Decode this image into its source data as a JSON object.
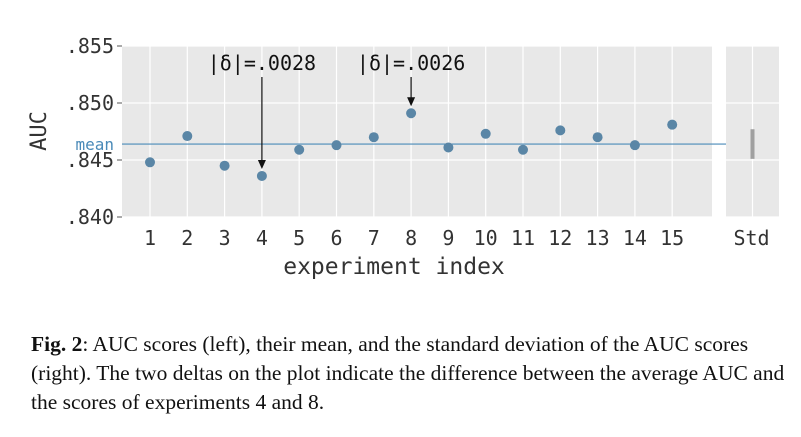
{
  "chart_data": {
    "type": "scatter",
    "ylabel": "AUC",
    "xlabel": "experiment index",
    "ylim": [
      0.84,
      0.855
    ],
    "yticks": [
      0.84,
      0.845,
      0.85,
      0.855
    ],
    "ytick_labels": [
      ".840",
      ".845",
      ".850",
      ".855"
    ],
    "x": [
      1,
      2,
      3,
      4,
      5,
      6,
      7,
      8,
      9,
      10,
      11,
      12,
      13,
      14,
      15
    ],
    "xtick_labels": [
      "1",
      "2",
      "3",
      "4",
      "5",
      "6",
      "7",
      "8",
      "9",
      "10",
      "11",
      "12",
      "13",
      "14",
      "15"
    ],
    "values": [
      0.8448,
      0.8471,
      0.8445,
      0.8436,
      0.8459,
      0.8463,
      0.847,
      0.8491,
      0.8461,
      0.8473,
      0.8459,
      0.8476,
      0.847,
      0.8463,
      0.8481
    ],
    "mean": 0.8464,
    "mean_label": "mean",
    "std_label": "Std",
    "std_band": [
      0.8451,
      0.8477
    ],
    "annotations": [
      {
        "x": 4,
        "text": "|δ|=.0028"
      },
      {
        "x": 8,
        "text": "|δ|=.0026"
      }
    ],
    "grid": true,
    "colors": {
      "background": "#e8e8e8",
      "grid": "#ffffff",
      "point": "#5a86a6",
      "mean_line": "#4a8ab8",
      "std_band": "#a0a0a0"
    }
  },
  "caption": {
    "lead": "Fig. 2",
    "text": ": AUC scores (left), their mean, and the standard deviation of the AUC scores (right). The two deltas on the plot indicate the difference between the average AUC and the scores of experiments 4 and 8."
  }
}
